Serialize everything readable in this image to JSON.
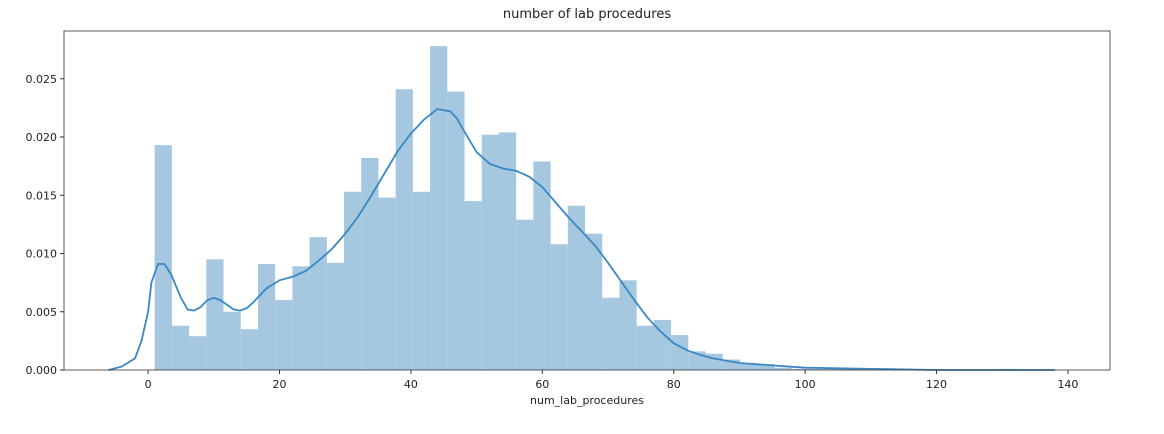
{
  "chart_data": {
    "type": "histogram",
    "title": "number of lab procedures",
    "xlabel": "num_lab_procedures",
    "bar_color": "#a5c7e0",
    "bins": [
      1,
      3.62,
      6.24,
      8.86,
      11.48,
      14.1,
      16.72,
      19.34,
      21.96,
      24.58,
      27.2,
      29.82,
      32.44,
      35.06,
      37.68,
      40.3,
      42.92,
      45.54,
      48.16,
      50.78,
      53.4,
      56.02,
      58.64,
      61.26,
      63.88,
      66.5,
      69.12,
      71.74,
      74.36,
      76.98,
      79.6,
      82.22,
      84.84,
      87.46,
      90.08,
      92.7,
      95.32,
      97.94,
      100.56,
      103.18,
      105.8,
      108.42,
      111.04,
      113.66,
      116.28,
      118.9,
      121.52,
      124.14,
      126.76,
      129.38,
      132
    ],
    "values": [
      0.0193,
      0.0038,
      0.0029,
      0.0095,
      0.005,
      0.0035,
      0.0091,
      0.006,
      0.0089,
      0.0114,
      0.0092,
      0.0153,
      0.0182,
      0.0148,
      0.0241,
      0.0153,
      0.0278,
      0.0239,
      0.0145,
      0.0202,
      0.0204,
      0.0129,
      0.0179,
      0.0108,
      0.0141,
      0.0117,
      0.0062,
      0.0077,
      0.0038,
      0.0043,
      0.003,
      0.0016,
      0.0014,
      0.0009,
      0.0006,
      0.0005,
      0.0002,
      0.0001,
      0.0001,
      0.0001,
      0.0001,
      0,
      0,
      0,
      0,
      0,
      0,
      0,
      0,
      0.0001
    ],
    "kde": {
      "color": "#3a89c3",
      "x": [
        -6,
        -4,
        -2,
        -1,
        0,
        0.5,
        1.5,
        2.5,
        3.5,
        5,
        6,
        7,
        8,
        9,
        10,
        11,
        12,
        13,
        14,
        15,
        16,
        18,
        20,
        22,
        24,
        26,
        28,
        30,
        32,
        34,
        36,
        38,
        40,
        42,
        44,
        46,
        47,
        48,
        50,
        52,
        54,
        56,
        58,
        60,
        62,
        64,
        66,
        68,
        70,
        72,
        74,
        76,
        78,
        80,
        82,
        84,
        86,
        90,
        95,
        100,
        110,
        120,
        138
      ],
      "y": [
        0,
        0.0003,
        0.001,
        0.0025,
        0.005,
        0.0075,
        0.0091,
        0.0091,
        0.0082,
        0.0062,
        0.0052,
        0.0051,
        0.0054,
        0.006,
        0.0062,
        0.006,
        0.0056,
        0.0052,
        0.0051,
        0.0053,
        0.0058,
        0.007,
        0.0077,
        0.008,
        0.0085,
        0.0094,
        0.0104,
        0.0117,
        0.0132,
        0.015,
        0.0169,
        0.0188,
        0.0203,
        0.0215,
        0.0224,
        0.0222,
        0.0216,
        0.0206,
        0.0187,
        0.0177,
        0.0173,
        0.0171,
        0.0166,
        0.0157,
        0.0144,
        0.0131,
        0.0119,
        0.0107,
        0.0092,
        0.0076,
        0.006,
        0.0045,
        0.0033,
        0.0023,
        0.0017,
        0.0013,
        0.001,
        0.0006,
        0.0004,
        0.0002,
        0.0001,
        0,
        0
      ]
    },
    "xlim": [
      -12.8,
      146.4
    ],
    "ylim": [
      0,
      0.0291
    ],
    "xticks": [
      0,
      20,
      40,
      60,
      80,
      100,
      120,
      140
    ],
    "yticks": [
      {
        "value": 0,
        "label": "0.000"
      },
      {
        "value": 0.005,
        "label": "0.005"
      },
      {
        "value": 0.01,
        "label": "0.010"
      },
      {
        "value": 0.015,
        "label": "0.015"
      },
      {
        "value": 0.02,
        "label": "0.020"
      },
      {
        "value": 0.025,
        "label": "0.025"
      }
    ]
  }
}
